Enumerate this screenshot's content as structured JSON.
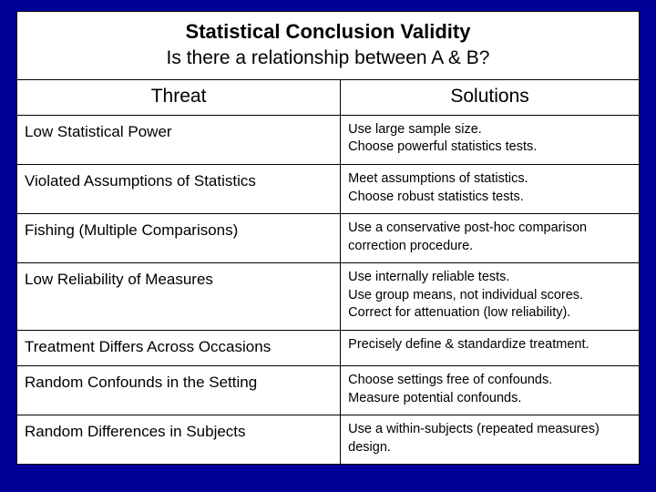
{
  "colors": {
    "background": "#000099",
    "cell_bg": "#ffffff",
    "border": "#000000",
    "text": "#000000"
  },
  "title": {
    "main": "Statistical Conclusion Validity",
    "sub": "Is there a relationship between A & B?"
  },
  "headers": {
    "threat": "Threat",
    "solutions": "Solutions"
  },
  "rows": [
    {
      "threat": "Low Statistical Power",
      "solutions": [
        "Use large sample size.",
        "Choose powerful statistics tests."
      ]
    },
    {
      "threat": "Violated Assumptions of Statistics",
      "solutions": [
        "Meet assumptions of statistics.",
        "Choose robust statistics tests."
      ]
    },
    {
      "threat": "Fishing (Multiple Comparisons)",
      "solutions": [
        "Use a conservative post-hoc comparison correction procedure."
      ]
    },
    {
      "threat": "Low Reliability of Measures",
      "solutions": [
        "Use internally reliable tests.",
        "Use group means, not individual scores.",
        "Correct for attenuation (low reliability)."
      ]
    },
    {
      "threat": "Treatment Differs Across Occasions",
      "solutions": [
        "Precisely define & standardize treatment."
      ]
    },
    {
      "threat": "Random Confounds in the Setting",
      "solutions": [
        "Choose settings free of confounds.",
        "Measure potential confounds."
      ]
    },
    {
      "threat": "Random Differences in Subjects",
      "solutions": [
        "Use a within-subjects (repeated measures) design."
      ]
    }
  ]
}
